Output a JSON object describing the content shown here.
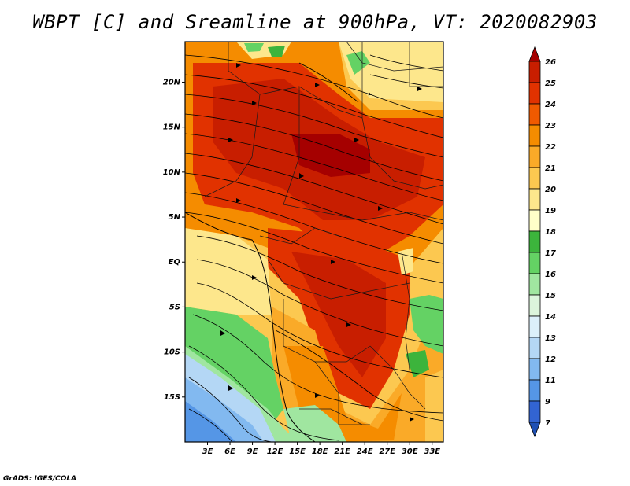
{
  "title": "WBPT [C] and Sreamline at 900hPa, VT: 2020082903",
  "credit": "GrADS: IGES/COLA",
  "map": {
    "lat_ticks": [
      "20N",
      "15N",
      "10N",
      "5N",
      "EQ",
      "5S",
      "10S",
      "15S"
    ],
    "lon_ticks": [
      "3E",
      "6E",
      "9E",
      "12E",
      "15E",
      "18E",
      "21E",
      "24E",
      "27E",
      "30E",
      "33E"
    ],
    "lat_range": [
      -20,
      24.5
    ],
    "lon_range": [
      0,
      34.5
    ]
  },
  "colorbar": {
    "labels": [
      "26",
      "25",
      "24",
      "23",
      "22",
      "21",
      "20",
      "19",
      "18",
      "17",
      "16",
      "15",
      "14",
      "13",
      "12",
      "11",
      "9",
      "7"
    ],
    "colors": [
      "#a50000",
      "#c81e00",
      "#e13200",
      "#f05a00",
      "#f58c00",
      "#faaa28",
      "#fcc850",
      "#fde78c",
      "#ffffc8",
      "#3cb43c",
      "#64d264",
      "#a0e6a0",
      "#dcf5dc",
      "#dcf0fa",
      "#b4d7f5",
      "#82b9f0",
      "#5596e6",
      "#3264d2",
      "#1e50b4"
    ]
  }
}
